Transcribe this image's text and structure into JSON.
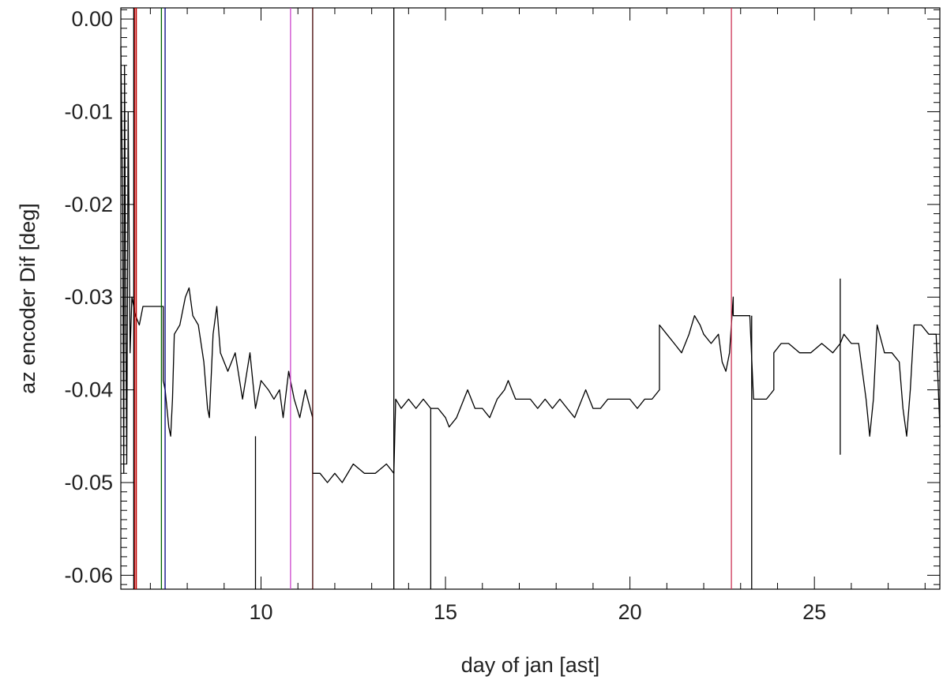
{
  "chart_data": {
    "type": "line",
    "title": "",
    "xlabel": "day of jan [ast]",
    "ylabel": "az encoder Dif [deg]",
    "xlim": [
      6.2,
      28.4
    ],
    "ylim": [
      -0.0615,
      0.0012
    ],
    "x_ticks": [
      10,
      15,
      20,
      25
    ],
    "y_ticks": [
      0.0,
      -0.01,
      -0.02,
      -0.03,
      -0.04,
      -0.05,
      -0.06
    ],
    "x_tick_labels": [
      "10",
      "15",
      "20",
      "25"
    ],
    "y_tick_labels": [
      "0.00",
      "-0.01",
      "-0.02",
      "-0.03",
      "-0.04",
      "-0.05",
      "-0.06"
    ],
    "x_minor_step": 1,
    "y_minor_step": 0.001,
    "grid": false,
    "series": [
      {
        "color": "#000000",
        "values": [
          [
            6.2,
            -0.003
          ],
          [
            6.25,
            -0.02
          ],
          [
            6.28,
            -0.049
          ],
          [
            6.3,
            -0.005
          ],
          [
            6.33,
            -0.03
          ],
          [
            6.36,
            -0.048
          ],
          [
            6.4,
            -0.01
          ],
          [
            6.45,
            -0.036
          ],
          [
            6.5,
            -0.03
          ],
          [
            6.6,
            -0.032
          ],
          [
            6.7,
            -0.033
          ],
          [
            6.8,
            -0.031
          ],
          [
            7.0,
            -0.031
          ],
          [
            7.2,
            -0.031
          ],
          [
            7.35,
            -0.031
          ],
          [
            7.35,
            -0.039
          ],
          [
            7.4,
            -0.04
          ],
          [
            7.5,
            -0.044
          ],
          [
            7.55,
            -0.045
          ],
          [
            7.6,
            -0.041
          ],
          [
            7.65,
            -0.034
          ],
          [
            7.8,
            -0.033
          ],
          [
            7.95,
            -0.03
          ],
          [
            8.05,
            -0.029
          ],
          [
            8.15,
            -0.032
          ],
          [
            8.3,
            -0.033
          ],
          [
            8.45,
            -0.037
          ],
          [
            8.55,
            -0.042
          ],
          [
            8.6,
            -0.043
          ],
          [
            8.7,
            -0.034
          ],
          [
            8.8,
            -0.031
          ],
          [
            8.9,
            -0.036
          ],
          [
            9.1,
            -0.038
          ],
          [
            9.3,
            -0.036
          ],
          [
            9.5,
            -0.041
          ],
          [
            9.7,
            -0.036
          ],
          [
            9.85,
            -0.042
          ],
          [
            10.0,
            -0.039
          ],
          [
            10.2,
            -0.04
          ],
          [
            10.35,
            -0.041
          ],
          [
            10.5,
            -0.04
          ],
          [
            10.6,
            -0.043
          ],
          [
            10.75,
            -0.038
          ],
          [
            10.9,
            -0.041
          ],
          [
            11.05,
            -0.043
          ],
          [
            11.2,
            -0.04
          ],
          [
            11.4,
            -0.043
          ],
          [
            11.4,
            -0.049
          ],
          [
            11.6,
            -0.049
          ],
          [
            11.8,
            -0.05
          ],
          [
            12.0,
            -0.049
          ],
          [
            12.2,
            -0.05
          ],
          [
            12.5,
            -0.048
          ],
          [
            12.8,
            -0.049
          ],
          [
            13.1,
            -0.049
          ],
          [
            13.4,
            -0.048
          ],
          [
            13.6,
            -0.049
          ],
          [
            13.65,
            -0.041
          ],
          [
            13.8,
            -0.042
          ],
          [
            14.0,
            -0.041
          ],
          [
            14.2,
            -0.042
          ],
          [
            14.4,
            -0.041
          ],
          [
            14.6,
            -0.042
          ],
          [
            14.8,
            -0.042
          ],
          [
            15.0,
            -0.043
          ],
          [
            15.1,
            -0.044
          ],
          [
            15.3,
            -0.043
          ],
          [
            15.5,
            -0.041
          ],
          [
            15.6,
            -0.04
          ],
          [
            15.8,
            -0.042
          ],
          [
            16.0,
            -0.042
          ],
          [
            16.2,
            -0.043
          ],
          [
            16.4,
            -0.041
          ],
          [
            16.6,
            -0.04
          ],
          [
            16.7,
            -0.039
          ],
          [
            16.9,
            -0.041
          ],
          [
            17.1,
            -0.041
          ],
          [
            17.3,
            -0.041
          ],
          [
            17.5,
            -0.042
          ],
          [
            17.7,
            -0.041
          ],
          [
            17.9,
            -0.042
          ],
          [
            18.1,
            -0.041
          ],
          [
            18.3,
            -0.042
          ],
          [
            18.5,
            -0.043
          ],
          [
            18.6,
            -0.042
          ],
          [
            18.8,
            -0.04
          ],
          [
            19.0,
            -0.042
          ],
          [
            19.2,
            -0.042
          ],
          [
            19.4,
            -0.041
          ],
          [
            19.6,
            -0.041
          ],
          [
            19.8,
            -0.041
          ],
          [
            20.0,
            -0.041
          ],
          [
            20.2,
            -0.042
          ],
          [
            20.4,
            -0.041
          ],
          [
            20.6,
            -0.041
          ],
          [
            20.8,
            -0.04
          ],
          [
            20.8,
            -0.033
          ],
          [
            21.0,
            -0.034
          ],
          [
            21.2,
            -0.035
          ],
          [
            21.4,
            -0.036
          ],
          [
            21.6,
            -0.034
          ],
          [
            21.75,
            -0.032
          ],
          [
            21.9,
            -0.033
          ],
          [
            22.0,
            -0.034
          ],
          [
            22.2,
            -0.035
          ],
          [
            22.4,
            -0.034
          ],
          [
            22.5,
            -0.037
          ],
          [
            22.6,
            -0.038
          ],
          [
            22.7,
            -0.036
          ],
          [
            22.8,
            -0.03
          ],
          [
            22.8,
            -0.032
          ],
          [
            23.0,
            -0.032
          ],
          [
            23.25,
            -0.032
          ],
          [
            23.35,
            -0.041
          ],
          [
            23.5,
            -0.041
          ],
          [
            23.7,
            -0.041
          ],
          [
            23.9,
            -0.04
          ],
          [
            23.9,
            -0.036
          ],
          [
            24.1,
            -0.035
          ],
          [
            24.3,
            -0.035
          ],
          [
            24.6,
            -0.036
          ],
          [
            24.9,
            -0.036
          ],
          [
            25.2,
            -0.035
          ],
          [
            25.5,
            -0.036
          ],
          [
            25.7,
            -0.035
          ],
          [
            25.8,
            -0.034
          ],
          [
            26.0,
            -0.035
          ],
          [
            26.2,
            -0.035
          ],
          [
            26.4,
            -0.041
          ],
          [
            26.5,
            -0.045
          ],
          [
            26.6,
            -0.041
          ],
          [
            26.7,
            -0.033
          ],
          [
            26.9,
            -0.036
          ],
          [
            27.1,
            -0.036
          ],
          [
            27.3,
            -0.037
          ],
          [
            27.4,
            -0.042
          ],
          [
            27.5,
            -0.045
          ],
          [
            27.6,
            -0.04
          ],
          [
            27.7,
            -0.033
          ],
          [
            27.9,
            -0.033
          ],
          [
            28.1,
            -0.034
          ],
          [
            28.3,
            -0.034
          ],
          [
            28.4,
            -0.044
          ]
        ]
      }
    ],
    "spikes": [
      {
        "x": 6.55,
        "y0": 0.0012,
        "y1": -0.0615,
        "color": "#000000"
      },
      {
        "x": 6.58,
        "y0": 0.0012,
        "y1": -0.0615,
        "color": "#c00000"
      },
      {
        "x": 6.62,
        "y0": 0.0012,
        "y1": -0.0615,
        "color": "#c00000"
      },
      {
        "x": 7.3,
        "y0": 0.0012,
        "y1": -0.0615,
        "color": "#006400"
      },
      {
        "x": 7.4,
        "y0": 0.0012,
        "y1": -0.0615,
        "color": "#000080"
      },
      {
        "x": 9.85,
        "y0": -0.045,
        "y1": -0.0615,
        "color": "#000000"
      },
      {
        "x": 10.8,
        "y0": 0.0012,
        "y1": -0.0615,
        "color": "#cc44cc"
      },
      {
        "x": 11.4,
        "y0": 0.0012,
        "y1": -0.0615,
        "color": "#400000"
      },
      {
        "x": 13.6,
        "y0": 0.0012,
        "y1": -0.0615,
        "color": "#000000"
      },
      {
        "x": 14.6,
        "y0": -0.042,
        "y1": -0.0615,
        "color": "#000000"
      },
      {
        "x": 22.75,
        "y0": 0.0012,
        "y1": -0.0615,
        "color": "#cc3355"
      },
      {
        "x": 23.3,
        "y0": -0.032,
        "y1": -0.0615,
        "color": "#000000"
      },
      {
        "x": 25.7,
        "y0": -0.028,
        "y1": -0.047,
        "color": "#000000"
      }
    ]
  }
}
